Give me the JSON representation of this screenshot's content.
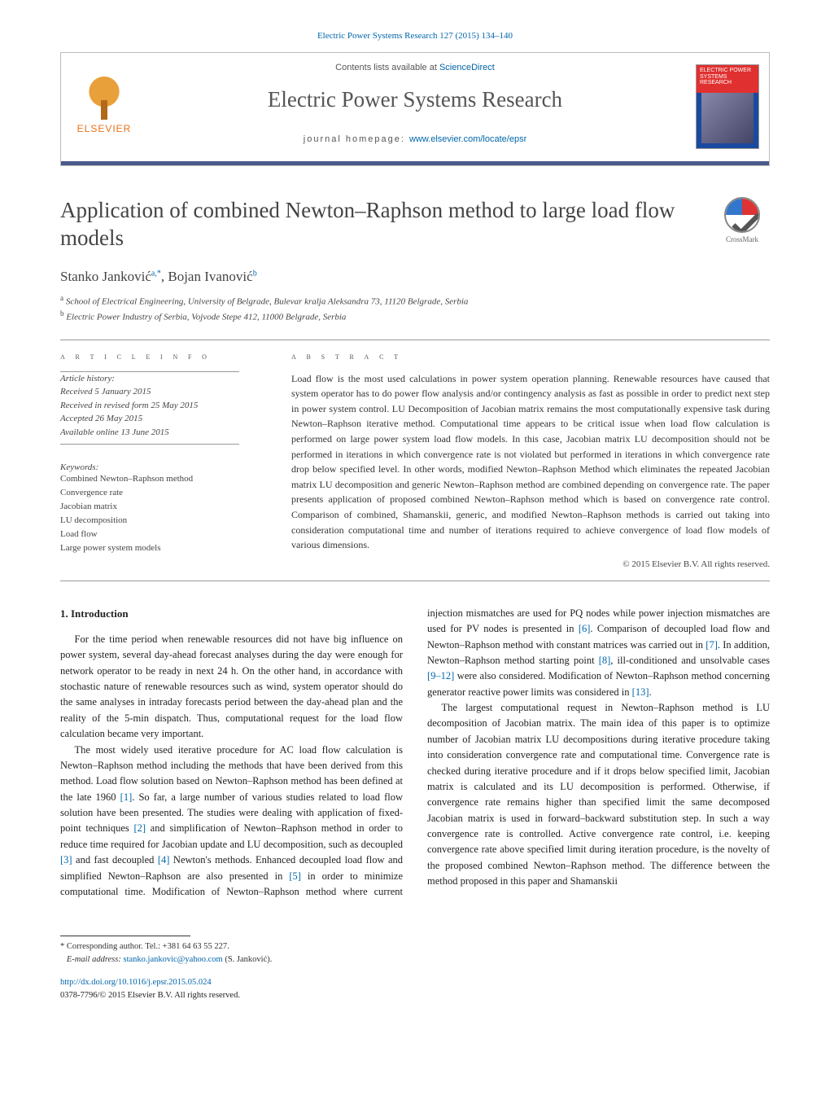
{
  "top_line": "Electric Power Systems Research 127 (2015) 134–140",
  "header": {
    "contents_prefix": "Contents lists available at ",
    "contents_link": "ScienceDirect",
    "journal_name": "Electric Power Systems Research",
    "homepage_prefix": "journal homepage: ",
    "homepage_link": "www.elsevier.com/locate/epsr",
    "publisher": "ELSEVIER",
    "cover_label": "ELECTRIC POWER SYSTEMS RESEARCH"
  },
  "crossmark_label": "CrossMark",
  "title": "Application of combined Newton–Raphson method to large load flow models",
  "authors_html": "Stanko Janković",
  "author1": "Stanko Janković",
  "author1_sup": "a,*",
  "author_sep": ", ",
  "author2": "Bojan Ivanović",
  "author2_sup": "b",
  "affiliations": {
    "a": "School of Electrical Engineering, University of Belgrade, Bulevar kralja Aleksandra 73, 11120 Belgrade, Serbia",
    "b": "Electric Power Industry of Serbia, Vojvode Stepe 412, 11000 Belgrade, Serbia"
  },
  "info_head": "A R T I C L E   I N F O",
  "abs_head": "A B S T R A C T",
  "history_label": "Article history:",
  "history": {
    "received": "Received 5 January 2015",
    "revised": "Received in revised form 25 May 2015",
    "accepted": "Accepted 26 May 2015",
    "online": "Available online 13 June 2015"
  },
  "keywords_label": "Keywords:",
  "keywords": [
    "Combined Newton–Raphson method",
    "Convergence rate",
    "Jacobian matrix",
    "LU decomposition",
    "Load flow",
    "Large power system models"
  ],
  "abstract": "Load flow is the most used calculations in power system operation planning. Renewable resources have caused that system operator has to do power flow analysis and/or contingency analysis as fast as possible in order to predict next step in power system control. LU Decomposition of Jacobian matrix remains the most computationally expensive task during Newton–Raphson iterative method. Computational time appears to be critical issue when load flow calculation is performed on large power system load flow models. In this case, Jacobian matrix LU decomposition should not be performed in iterations in which convergence rate is not violated but performed in iterations in which convergence rate drop below specified level. In other words, modified Newton–Raphson Method which eliminates the repeated Jacobian matrix LU decomposition and generic Newton–Raphson method are combined depending on convergence rate. The paper presents application of proposed combined Newton–Raphson method which is based on convergence rate control. Comparison of combined, Shamanskii, generic, and modified Newton–Raphson methods is carried out taking into consideration computational time and number of iterations required to achieve convergence of load flow models of various dimensions.",
  "copyright": "© 2015 Elsevier B.V. All rights reserved.",
  "section1_title": "1.  Introduction",
  "p1": "For the time period when renewable resources did not have big influence on power system, several day-ahead forecast analyses during the day were enough for network operator to be ready in next 24 h. On the other hand, in accordance with stochastic nature of renewable resources such as wind, system operator should do the same analyses in intraday forecasts period between the day-ahead plan and the reality of the 5-min dispatch. Thus, computational request for the load flow calculation became very important.",
  "p2a": "The most widely used iterative procedure for AC load flow calculation is Newton–Raphson method including the methods that have been derived from this method. Load flow solution based on Newton–Raphson method has been defined at the late 1960 ",
  "ref1": "[1]",
  "p2b": ". So far, a large number of various studies related to load flow solution have been presented. The studies were dealing with application of fixed-point techniques ",
  "ref2": "[2]",
  "p2c": " and simplification of Newton–Raphson method in order to reduce time required for Jacobian update and LU decomposition, such as decoupled ",
  "ref3": "[3]",
  "p2d": " and fast decoupled ",
  "ref4": "[4]",
  "p2e": " Newton's methods. Enhanced decoupled load flow and simplified Newton–Raphson are also presented in ",
  "ref5": "[5]",
  "p2f": " in order to minimize computational time. Modification of Newton–Raphson method where current injection mismatches are used for PQ nodes while power injection mismatches are used for PV nodes is presented in ",
  "ref6": "[6]",
  "p2g": ". Comparison of decoupled load flow and Newton–Raphson method with constant matrices was carried out in ",
  "ref7": "[7]",
  "p2h": ". In addition, Newton–Raphson method starting point ",
  "ref8": "[8]",
  "p2i": ", ill-conditioned and unsolvable cases ",
  "ref9_12": "[9–12]",
  "p2j": " were also considered. Modification of Newton–Raphson method concerning generator reactive power limits was considered in ",
  "ref13": "[13]",
  "p2k": ".",
  "p3": "The largest computational request in Newton–Raphson method is LU decomposition of Jacobian matrix. The main idea of this paper is to optimize number of Jacobian matrix LU decompositions during iterative procedure taking into consideration convergence rate and computational time. Convergence rate is checked during iterative procedure and if it drops below specified limit, Jacobian matrix is calculated and its LU decomposition is performed. Otherwise, if convergence rate remains higher than specified limit the same decomposed Jacobian matrix is used in forward–backward substitution step. In such a way convergence rate is controlled. Active convergence rate control, i.e. keeping convergence rate above specified limit during iteration procedure, is the novelty of the proposed combined Newton–Raphson method. The difference between the method proposed in this paper and Shamanskii",
  "footnotes": {
    "corr": "Corresponding author. Tel.: +381 64 63 55 227.",
    "email_label": "E-mail address: ",
    "email": "stanko.jankovic@yahoo.com",
    "email_who": " (S. Janković)."
  },
  "doi": "http://dx.doi.org/10.1016/j.epsr.2015.05.024",
  "issn_line": "0378-7796/© 2015 Elsevier B.V. All rights reserved.",
  "colors": {
    "link": "#0066aa",
    "headbar": "#4a5a8a",
    "elsevier_orange": "#e8711a"
  }
}
